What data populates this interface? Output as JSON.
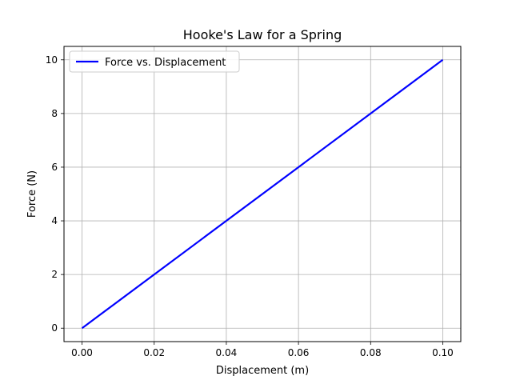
{
  "chart_data": {
    "type": "line",
    "title": "Hooke's Law for a Spring",
    "xlabel": "Displacement (m)",
    "ylabel": "Force (N)",
    "xlim": [
      -0.005,
      0.105
    ],
    "ylim": [
      -0.5,
      10.5
    ],
    "xticks": [
      0.0,
      0.02,
      0.04,
      0.06,
      0.08,
      0.1
    ],
    "xtick_labels": [
      "0.00",
      "0.02",
      "0.04",
      "0.06",
      "0.08",
      "0.10"
    ],
    "yticks": [
      0,
      2,
      4,
      6,
      8,
      10
    ],
    "ytick_labels": [
      "0",
      "2",
      "4",
      "6",
      "8",
      "10"
    ],
    "grid": true,
    "legend_position": "top-left",
    "series": [
      {
        "name": "Force vs. Displacement",
        "color": "#0000ff",
        "x": [
          0.0,
          0.02,
          0.04,
          0.06,
          0.08,
          0.1
        ],
        "y": [
          0,
          2,
          4,
          6,
          8,
          10
        ]
      }
    ]
  }
}
